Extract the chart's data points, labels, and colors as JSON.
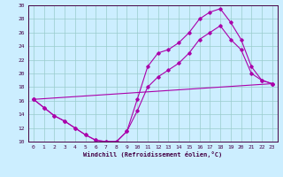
{
  "xlabel": "Windchill (Refroidissement éolien,°C)",
  "bg_color": "#cceeff",
  "line_color": "#aa00aa",
  "xlim": [
    -0.5,
    23.5
  ],
  "ylim": [
    10,
    30
  ],
  "xticks": [
    0,
    1,
    2,
    3,
    4,
    5,
    6,
    7,
    8,
    9,
    10,
    11,
    12,
    13,
    14,
    15,
    16,
    17,
    18,
    19,
    20,
    21,
    22,
    23
  ],
  "yticks": [
    10,
    12,
    14,
    16,
    18,
    20,
    22,
    24,
    26,
    28,
    30
  ],
  "grid_color": "#99cccc",
  "series": [
    {
      "x": [
        0,
        1,
        2,
        3,
        4,
        5,
        6,
        7,
        8,
        9,
        10,
        11,
        12,
        13,
        14,
        15,
        16,
        17,
        18,
        19,
        20,
        21,
        22,
        23
      ],
      "y": [
        16.2,
        15.0,
        13.8,
        13.0,
        12.0,
        11.0,
        10.2,
        10.0,
        10.0,
        11.5,
        16.2,
        21.0,
        23.0,
        23.5,
        24.5,
        26.0,
        28.0,
        29.0,
        29.5,
        27.5,
        25.0,
        21.0,
        19.0,
        18.5
      ]
    },
    {
      "x": [
        0,
        1,
        2,
        3,
        4,
        5,
        6,
        7,
        8,
        9,
        10,
        11,
        12,
        13,
        14,
        15,
        16,
        17,
        18,
        19,
        20,
        21,
        22,
        23
      ],
      "y": [
        16.2,
        15.0,
        13.8,
        13.0,
        12.0,
        11.0,
        10.2,
        10.0,
        10.0,
        11.5,
        14.5,
        18.0,
        19.5,
        20.5,
        21.5,
        23.0,
        25.0,
        26.0,
        27.0,
        25.0,
        23.5,
        20.0,
        19.0,
        18.5
      ]
    },
    {
      "x": [
        0,
        23
      ],
      "y": [
        16.2,
        18.5
      ]
    }
  ]
}
